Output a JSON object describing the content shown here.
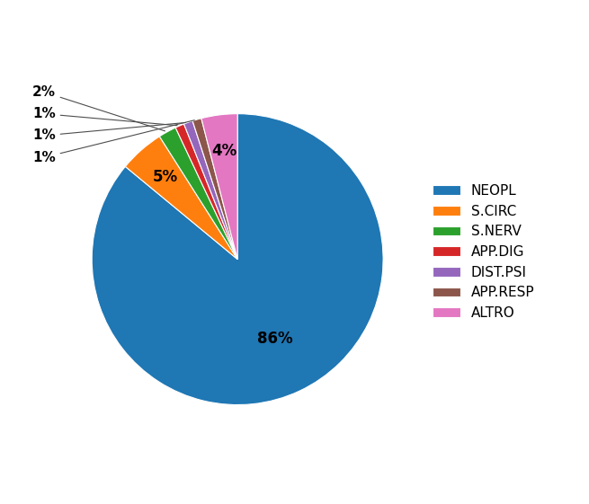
{
  "chart_data": {
    "type": "pie",
    "categories": [
      "NEOPL",
      "S.CIRC",
      "S.NERV",
      "APP.DIG",
      "DIST.PSI",
      "APP.RESP",
      "ALTRO"
    ],
    "values": [
      86,
      5,
      2,
      1,
      1,
      1,
      4
    ],
    "value_labels": [
      "86%",
      "5%",
      "2%",
      "1%",
      "1%",
      "1%",
      "4%"
    ],
    "data_labels": true,
    "legend": "center left"
  }
}
